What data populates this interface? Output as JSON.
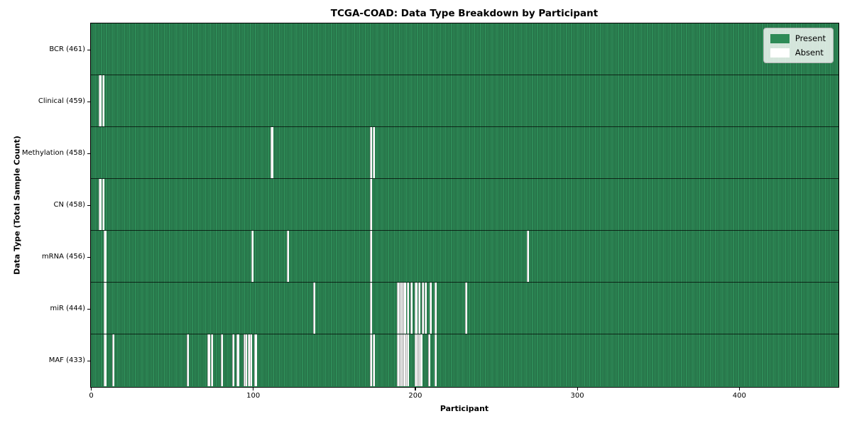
{
  "chart_data": {
    "type": "heatmap",
    "title": "TCGA-COAD: Data Type Breakdown by Participant",
    "xlabel": "Participant",
    "ylabel": "Data Type (Total Sample Count)",
    "x_max": 461,
    "x_ticks": [
      0,
      100,
      200,
      300,
      400
    ],
    "grid": false,
    "present_color": "#2e8b57",
    "absent_color": "#ffffff",
    "legend": {
      "position": "upper right",
      "entries": [
        {
          "label": "Present",
          "color": "#2e8b57"
        },
        {
          "label": "Absent",
          "color": "#ffffff"
        }
      ]
    },
    "rows": [
      {
        "key": "bcr",
        "label": "BCR (461)",
        "present_count": 461,
        "absent_participants": []
      },
      {
        "key": "clinical",
        "label": "Clinical (459)",
        "present_count": 459,
        "absent_participants": [
          5,
          7
        ]
      },
      {
        "key": "methylation",
        "label": "Methylation (458)",
        "present_count": 458,
        "absent_participants": [
          111,
          172,
          174
        ]
      },
      {
        "key": "cn",
        "label": "CN (458)",
        "present_count": 458,
        "absent_participants": [
          5,
          7,
          172
        ]
      },
      {
        "key": "mrna",
        "label": "mRNA (456)",
        "present_count": 456,
        "absent_participants": [
          8,
          99,
          121,
          172,
          269
        ]
      },
      {
        "key": "mir",
        "label": "miR (444)",
        "present_count": 444,
        "absent_participants": [
          8,
          137,
          172,
          189,
          190,
          191,
          192,
          193,
          195,
          197,
          200,
          202,
          204,
          206,
          209,
          212,
          231
        ]
      },
      {
        "key": "maf",
        "label": "MAF (433)",
        "present_count": 433,
        "absent_participants": [
          8,
          13,
          59,
          72,
          74,
          80,
          87,
          90,
          94,
          95,
          97,
          98,
          101,
          172,
          174,
          189,
          190,
          191,
          192,
          193,
          194,
          195,
          200,
          201,
          202,
          203,
          208,
          212
        ]
      }
    ]
  }
}
